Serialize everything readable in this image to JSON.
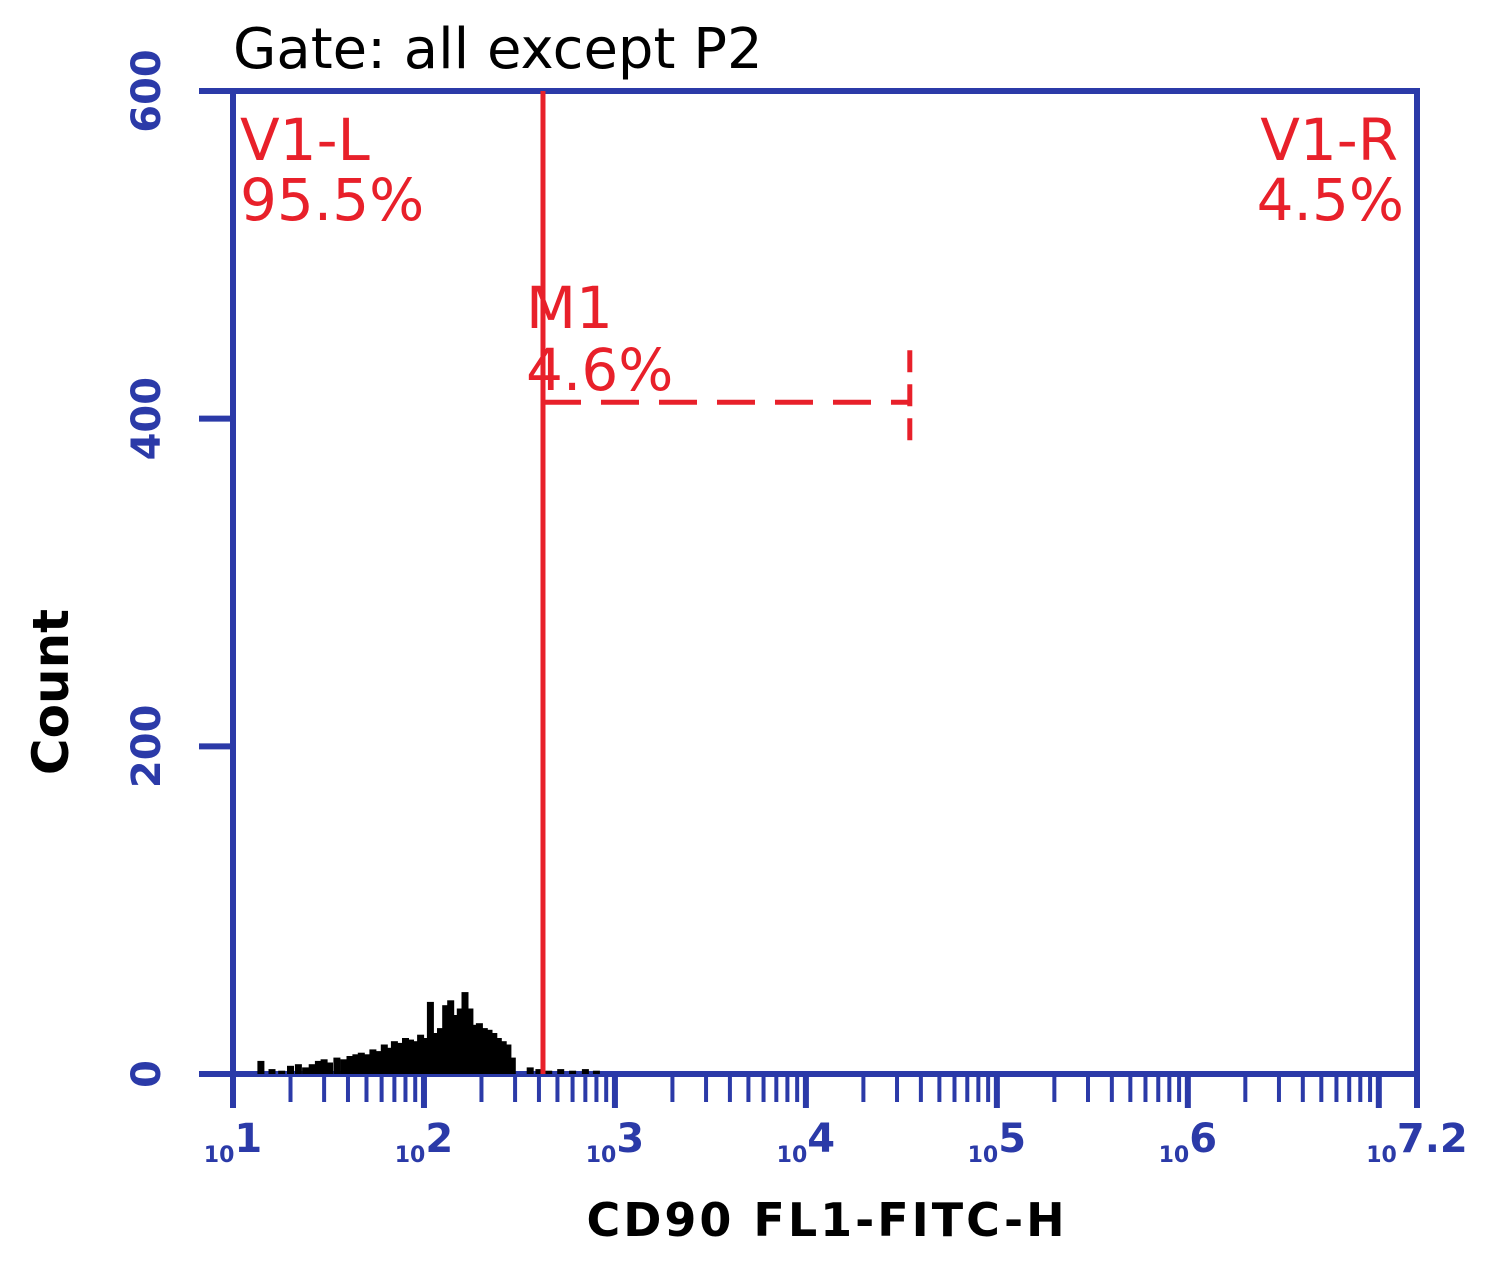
{
  "colors": {
    "axis": "#2b3aa8",
    "gate": "#e8202a",
    "histogram": "#000000",
    "text": "#000000",
    "background": "#ffffff"
  },
  "chart_data": {
    "type": "bar",
    "title": "Gate: all except P2",
    "xlabel": "CD90 FL1-FITC-H",
    "ylabel": "Count",
    "x_scale": "log",
    "xlim": [
      10,
      15848932
    ],
    "ylim": [
      0,
      600
    ],
    "x_ticks": [
      {
        "value": 10,
        "base": "10",
        "exp": "1"
      },
      {
        "value": 100,
        "base": "10",
        "exp": "2"
      },
      {
        "value": 1000,
        "base": "10",
        "exp": "3"
      },
      {
        "value": 10000,
        "base": "10",
        "exp": "4"
      },
      {
        "value": 100000,
        "base": "10",
        "exp": "5"
      },
      {
        "value": 1000000,
        "base": "10",
        "exp": "6"
      },
      {
        "value": 15848932,
        "base": "10",
        "exp": "7.2"
      }
    ],
    "y_ticks": [
      {
        "value": 0,
        "label": "0"
      },
      {
        "value": 200,
        "label": "200"
      },
      {
        "value": 400,
        "label": "400"
      },
      {
        "value": 600,
        "label": "600"
      }
    ],
    "series": [
      {
        "x": [
          14,
          16,
          18,
          20,
          22,
          24,
          26,
          28,
          30,
          32,
          35,
          38,
          41,
          44,
          47,
          50,
          54,
          58,
          62,
          66,
          70,
          75,
          80,
          85,
          90,
          96,
          102,
          108,
          115,
          122,
          130,
          138,
          146,
          155,
          164,
          174,
          184,
          195,
          207,
          219,
          232,
          245,
          260,
          275,
          290,
          360,
          400,
          450,
          520,
          600,
          700,
          800
        ],
        "values": [
          8,
          3,
          2,
          5,
          6,
          4,
          6,
          8,
          9,
          7,
          10,
          9,
          11,
          12,
          13,
          12,
          15,
          14,
          18,
          16,
          20,
          19,
          22,
          21,
          20,
          24,
          22,
          44,
          25,
          28,
          42,
          45,
          36,
          40,
          50,
          40,
          30,
          31,
          28,
          27,
          25,
          22,
          20,
          18,
          10,
          4,
          3,
          2,
          3,
          2,
          3,
          2
        ]
      }
    ],
    "markers": {
      "v1_divider_x": 420,
      "m1_range": [
        420,
        35000
      ],
      "m1_y": 410
    },
    "annotations": {
      "v1l_name": "V1-L",
      "v1l_pct": "95.5%",
      "v1r_name": "V1-R",
      "v1r_pct": "4.5%",
      "m1_name": "M1",
      "m1_pct": "4.6%"
    }
  }
}
